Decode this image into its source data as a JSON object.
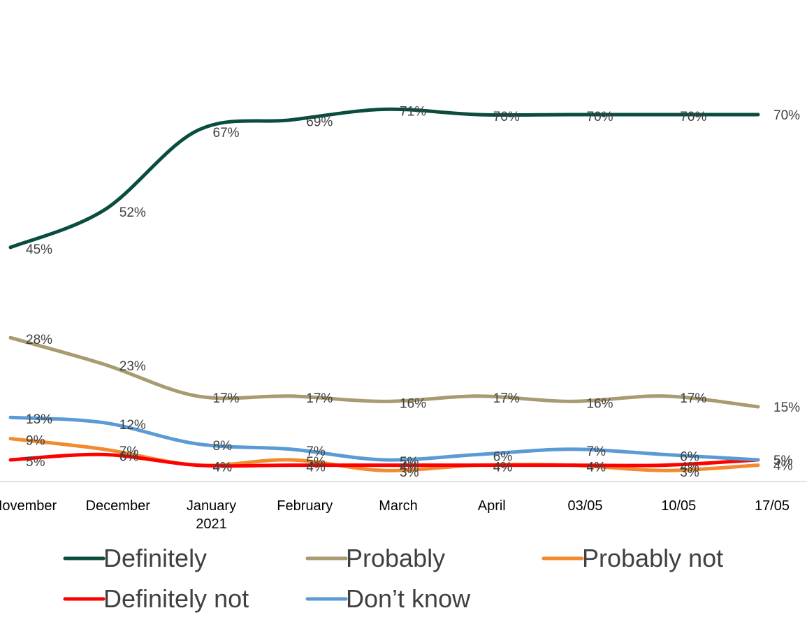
{
  "chart_data": {
    "type": "line",
    "categories": [
      [
        "November"
      ],
      [
        "December"
      ],
      [
        "January",
        "2021"
      ],
      [
        "February"
      ],
      [
        "March"
      ],
      [
        "April"
      ],
      [
        "03/05"
      ],
      [
        "10/05"
      ],
      [
        "17/05"
      ]
    ],
    "ylim": [
      0,
      75
    ],
    "grid": false,
    "legend_position": "bottom",
    "series": [
      {
        "name": "Definitely",
        "color": "#0a4d3f",
        "values": [
          45,
          52,
          67,
          69,
          71,
          70,
          70,
          70,
          70
        ],
        "labels": [
          "45%",
          "52%",
          "67%",
          "69%",
          "71%",
          "70%",
          "70%",
          "70%",
          "70%"
        ]
      },
      {
        "name": "Probably",
        "color": "#a89a71",
        "values": [
          28,
          23,
          17,
          17,
          16,
          17,
          16,
          17,
          15
        ],
        "labels": [
          "28%",
          "23%",
          "17%",
          "17%",
          "16%",
          "17%",
          "16%",
          "17%",
          "15%"
        ]
      },
      {
        "name": "Probably not",
        "color": "#f28a2e",
        "values": [
          9,
          7,
          4,
          5,
          3,
          4,
          4,
          3,
          4
        ],
        "labels": [
          "9%",
          "7%",
          "4%",
          "5%",
          "3%",
          "4%",
          "4%",
          "3%",
          "4%"
        ]
      },
      {
        "name": "Definitely not",
        "color": "#ff0000",
        "values": [
          5,
          6,
          4,
          4,
          4,
          4,
          4,
          4,
          5
        ],
        "labels": [
          "5%",
          "6%",
          "4%",
          "4%",
          "4%",
          "4%",
          "4%",
          "4%",
          "5%"
        ]
      },
      {
        "name": "Don’t know",
        "color": "#5b9bd5",
        "values": [
          13,
          12,
          8,
          7,
          5,
          6,
          7,
          6,
          5
        ],
        "labels": [
          "13%",
          "12%",
          "8%",
          "7%",
          "5%",
          "6%",
          "7%",
          "6%",
          "5%"
        ]
      }
    ]
  }
}
